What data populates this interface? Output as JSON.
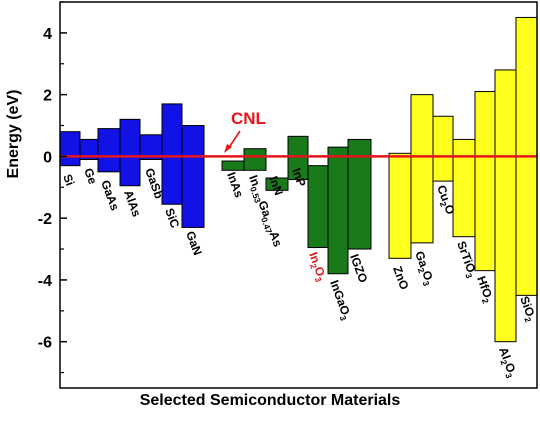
{
  "chart_data": {
    "type": "bar",
    "title": "",
    "xlabel": "Selected Semiconductor Materials",
    "ylabel": "Energy (eV)",
    "ylim": [
      -7.5,
      5.0
    ],
    "yticks": [
      -6,
      -4,
      -2,
      0,
      2,
      4
    ],
    "ytick_labels": [
      "-6",
      "-4",
      "-2",
      "0",
      "2",
      "4"
    ],
    "grid": false,
    "legend": "none",
    "cnl": {
      "label": "CNL",
      "value": 0,
      "color": "#e8141c"
    },
    "groups": [
      {
        "name": "group-1",
        "color": "#1212e6"
      },
      {
        "name": "group-2",
        "color": "#187a18"
      },
      {
        "name": "group-3",
        "color": "#ffff1e"
      }
    ],
    "materials": [
      {
        "label": "Si",
        "cbm": 0.8,
        "vbm": -0.3,
        "group": 0,
        "highlight": false
      },
      {
        "label": "Ge",
        "cbm": 0.55,
        "vbm": -0.1,
        "group": 0,
        "highlight": false
      },
      {
        "label": "GaAs",
        "cbm": 0.9,
        "vbm": -0.5,
        "group": 0,
        "highlight": false
      },
      {
        "label": "AlAs",
        "cbm": 1.2,
        "vbm": -0.95,
        "group": 0,
        "highlight": false
      },
      {
        "label": "GaSb",
        "cbm": 0.7,
        "vbm": -0.1,
        "group": 0,
        "highlight": false
      },
      {
        "label": "SiC",
        "cbm": 1.7,
        "vbm": -1.55,
        "group": 0,
        "highlight": false
      },
      {
        "label": "GaN",
        "cbm": 1.0,
        "vbm": -2.3,
        "group": 0,
        "highlight": false
      },
      {
        "label": "InAs",
        "cbm": -0.15,
        "vbm": -0.45,
        "group": 1,
        "highlight": false
      },
      {
        "label": "In0.53Ga0.47As",
        "cbm": 0.25,
        "vbm": -0.45,
        "group": 1,
        "highlight": false
      },
      {
        "label": "InN",
        "cbm": -0.7,
        "vbm": -1.1,
        "group": 1,
        "highlight": false
      },
      {
        "label": "InP",
        "cbm": 0.65,
        "vbm": -0.75,
        "group": 1,
        "highlight": false
      },
      {
        "label": "In2O3",
        "cbm": -0.3,
        "vbm": -2.95,
        "group": 1,
        "highlight": true
      },
      {
        "label": "InGaO3",
        "cbm": 0.3,
        "vbm": -3.8,
        "group": 1,
        "highlight": false
      },
      {
        "label": "IGZO",
        "cbm": 0.55,
        "vbm": -3.0,
        "group": 1,
        "highlight": false
      },
      {
        "label": "ZnO",
        "cbm": 0.1,
        "vbm": -3.3,
        "group": 2,
        "highlight": false
      },
      {
        "label": "Ga2O3",
        "cbm": 2.0,
        "vbm": -2.8,
        "group": 2,
        "highlight": false
      },
      {
        "label": "Cu2O",
        "cbm": 1.3,
        "vbm": -0.8,
        "group": 2,
        "highlight": false
      },
      {
        "label": "SrTiO3",
        "cbm": 0.55,
        "vbm": -2.6,
        "group": 2,
        "highlight": false
      },
      {
        "label": "HfO2",
        "cbm": 2.1,
        "vbm": -3.7,
        "group": 2,
        "highlight": false
      },
      {
        "label": "Al2O3",
        "cbm": 2.8,
        "vbm": -6.0,
        "group": 2,
        "highlight": false
      },
      {
        "label": "SiO2",
        "cbm": 4.5,
        "vbm": -4.5,
        "group": 2,
        "highlight": false
      }
    ]
  }
}
